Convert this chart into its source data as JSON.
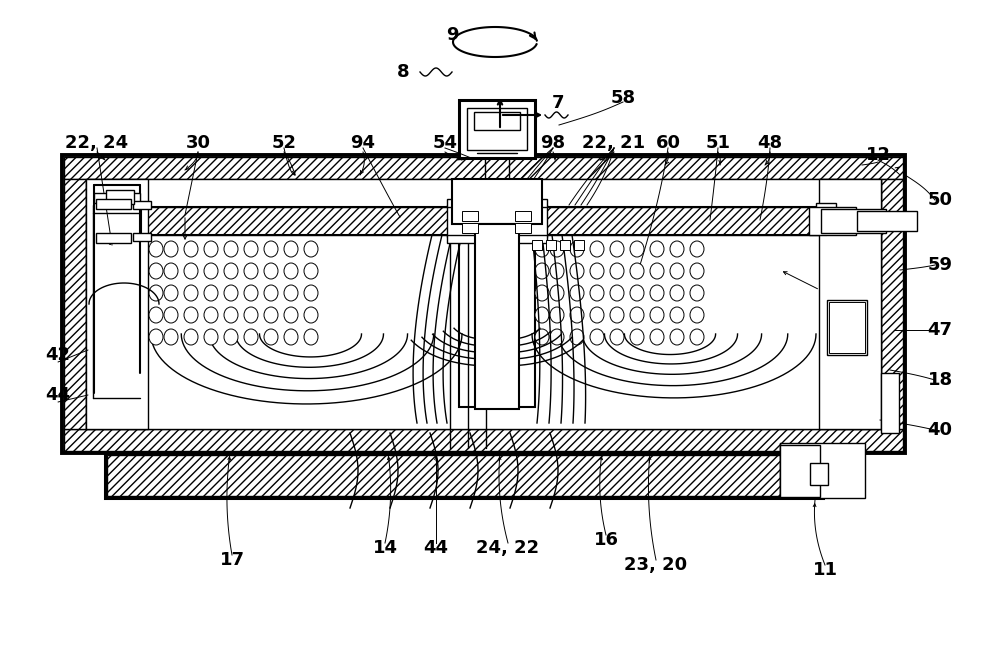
{
  "bg_color": "#ffffff",
  "line_color": "#000000",
  "figsize": [
    10.0,
    6.59
  ],
  "dpi": 100
}
